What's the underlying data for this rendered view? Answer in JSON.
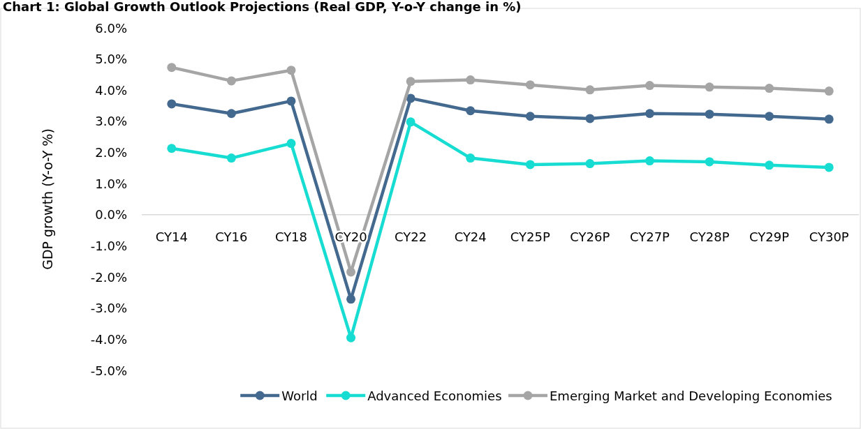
{
  "chart_data": {
    "type": "line",
    "title": "Chart 1: Global Growth Outlook Projections (Real GDP, Y-o-Y change in %)",
    "ylabel": "GDP growth (Y-o-Y %)",
    "categories": [
      "CY14",
      "CY16",
      "CY18",
      "CY20",
      "CY22",
      "CY24",
      "CY25P",
      "CY26P",
      "CY27P",
      "CY28P",
      "CY29P",
      "CY30P"
    ],
    "series": [
      {
        "name": "World",
        "color": "#44698f",
        "values": [
          3.56,
          3.25,
          3.65,
          -2.71,
          3.74,
          3.34,
          3.16,
          3.09,
          3.25,
          3.23,
          3.16,
          3.07
        ]
      },
      {
        "name": "Advanced Economies",
        "color": "#17dcd2",
        "values": [
          2.13,
          1.82,
          2.29,
          -3.95,
          2.98,
          1.82,
          1.61,
          1.64,
          1.73,
          1.7,
          1.59,
          1.52
        ]
      },
      {
        "name": "Emerging Market and Developing Economies",
        "color": "#a5a5a5",
        "values": [
          4.73,
          4.3,
          4.64,
          -1.84,
          4.28,
          4.33,
          4.17,
          4.01,
          4.15,
          4.1,
          4.06,
          3.97
        ]
      }
    ],
    "ylim": [
      -5,
      6
    ],
    "yticks": [
      {
        "value": -5,
        "label": "-5.0%"
      },
      {
        "value": -4,
        "label": "-4.0%"
      },
      {
        "value": -3,
        "label": "-3.0%"
      },
      {
        "value": -2,
        "label": "-2.0%"
      },
      {
        "value": -1,
        "label": "-1.0%"
      },
      {
        "value": 0,
        "label": "0.0%"
      },
      {
        "value": 1,
        "label": "1.0%"
      },
      {
        "value": 2,
        "label": "2.0%"
      },
      {
        "value": 3,
        "label": "3.0%"
      },
      {
        "value": 4,
        "label": "4.0%"
      },
      {
        "value": 5,
        "label": "5.0%"
      },
      {
        "value": 6,
        "label": "6.0%"
      }
    ],
    "marker": "circle",
    "line_style": "solid",
    "legend": "bottom",
    "grid": false
  }
}
